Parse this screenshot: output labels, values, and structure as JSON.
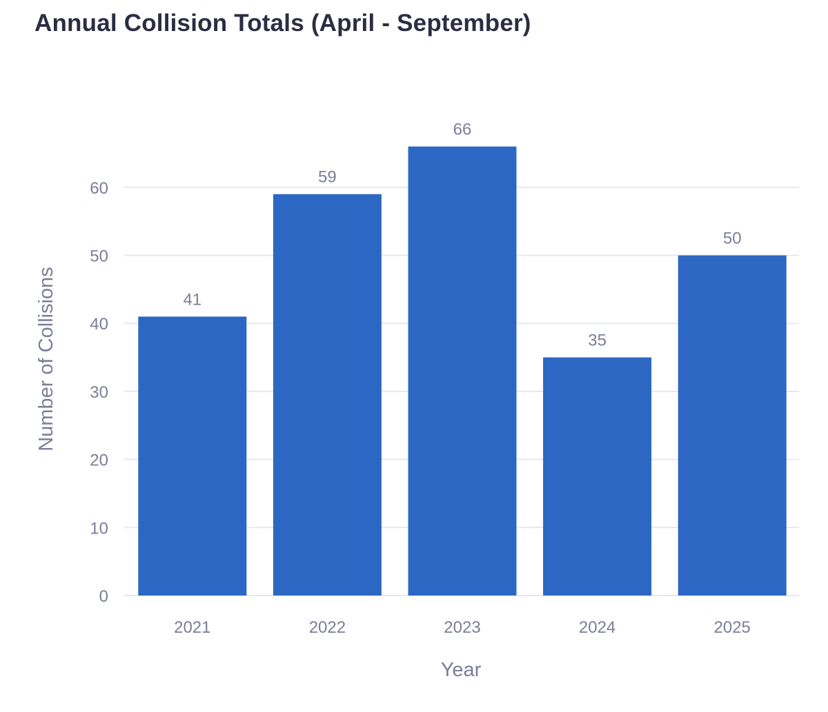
{
  "chart_data": {
    "type": "bar",
    "title": "Annual Collision Totals (April - September)",
    "xlabel": "Year",
    "ylabel": "Number of Collisions",
    "categories": [
      "2021",
      "2022",
      "2023",
      "2024",
      "2025"
    ],
    "values": [
      41,
      59,
      66,
      35,
      50
    ],
    "data_labels": [
      "41",
      "59",
      "66",
      "35",
      "50"
    ],
    "yticks": [
      0,
      10,
      20,
      30,
      40,
      50,
      60
    ],
    "ytick_labels": [
      "0",
      "10",
      "20",
      "30",
      "40",
      "50",
      "60"
    ],
    "ylim": [
      0,
      66
    ],
    "grid": true,
    "bar_color": "#2d67c4",
    "grid_color": "#e6e8f0",
    "text_color": "#7b7e96"
  }
}
